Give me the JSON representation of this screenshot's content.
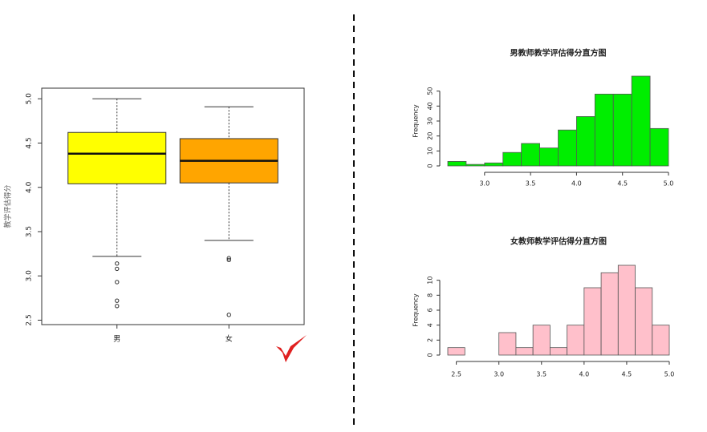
{
  "chart_data": [
    {
      "type": "box",
      "ylabel": "教学评估得分",
      "categories": [
        "男",
        "女"
      ],
      "ylim": [
        2.45,
        5.12
      ],
      "yticks": [
        2.5,
        {
          "value": 3,
          "label": "3.0"
        },
        3.5,
        {
          "value": 4,
          "label": "4.0"
        },
        4.5,
        {
          "value": 5,
          "label": "5.0"
        }
      ],
      "boxes": [
        {
          "color": "#ffff00",
          "whisker_low": 3.22,
          "q1": 4.04,
          "median": 4.38,
          "q3": 4.62,
          "whisker_high": 5.0,
          "outliers": [
            3.14,
            3.08,
            2.93,
            2.72,
            2.66
          ]
        },
        {
          "color": "#ffa500",
          "whisker_low": 3.4,
          "q1": 4.05,
          "median": 4.3,
          "q3": 4.55,
          "whisker_high": 4.91,
          "outliers": [
            3.2,
            3.18,
            2.56
          ]
        }
      ]
    },
    {
      "type": "histogram",
      "title": "男教师教学评估得分直方图",
      "ylabel": "Frequency",
      "color": "#00ee00",
      "bins": [
        2.6,
        2.8,
        3.0,
        3.2,
        3.4,
        3.6,
        3.8,
        4.0,
        4.2,
        4.4,
        4.6,
        4.8,
        5.0
      ],
      "values": [
        3,
        1,
        2,
        9,
        15,
        12,
        24,
        33,
        48,
        48,
        60,
        25
      ],
      "xlim": [
        2.6,
        5.0
      ],
      "ylim": [
        0,
        60
      ],
      "xticks": [
        {
          "value": 3,
          "label": "3.0"
        },
        3.5,
        {
          "value": 4,
          "label": "4.0"
        },
        4.5,
        {
          "value": 5,
          "label": "5.0"
        }
      ],
      "yticks": [
        0,
        10,
        20,
        30,
        40,
        50
      ]
    },
    {
      "type": "histogram",
      "title": "女教师教学评估得分直方图",
      "ylabel": "Frequency",
      "color": "#ffc0cb",
      "bins": [
        2.4,
        2.6,
        2.8,
        3.0,
        3.2,
        3.4,
        3.6,
        3.8,
        4.0,
        4.2,
        4.4,
        4.6,
        4.8,
        5.0
      ],
      "values": [
        1,
        0,
        0,
        3,
        1,
        4,
        1,
        4,
        9,
        11,
        12,
        9,
        4
      ],
      "xlim": [
        2.4,
        5.0
      ],
      "ylim": [
        0,
        12
      ],
      "xticks": [
        2.5,
        {
          "value": 3,
          "label": "3.0"
        },
        3.5,
        {
          "value": 4,
          "label": "4.0"
        },
        4.5,
        {
          "value": 5,
          "label": "5.0"
        }
      ],
      "yticks": [
        0,
        2,
        4,
        6,
        8,
        10
      ]
    }
  ]
}
